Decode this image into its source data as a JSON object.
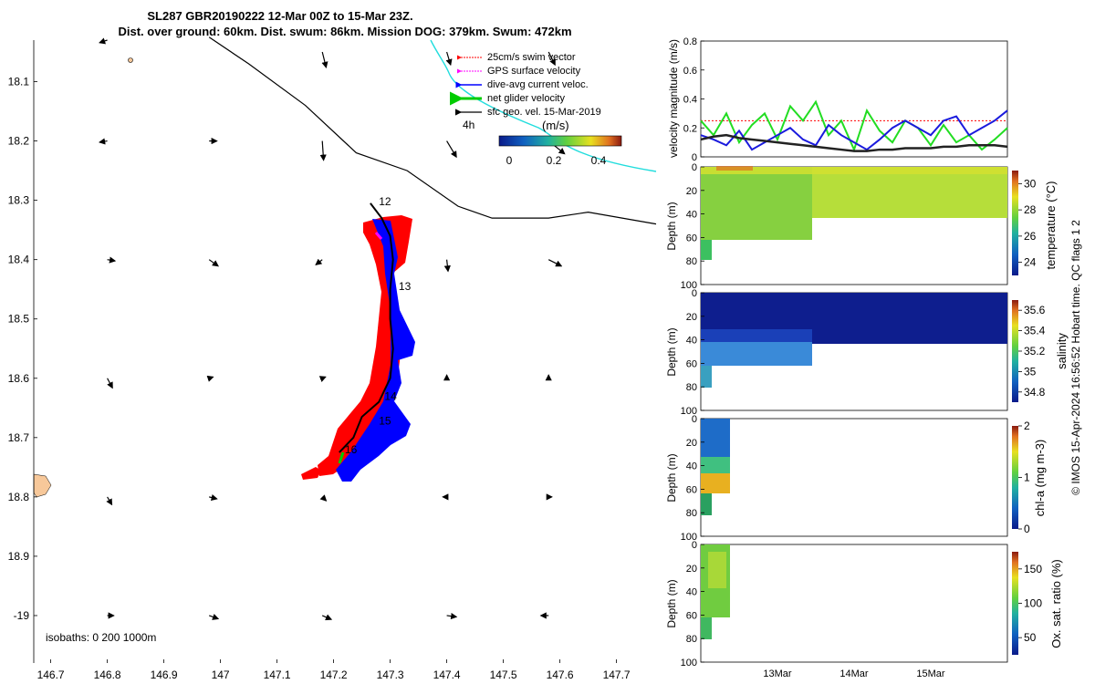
{
  "title": {
    "line1": "SL287 GBR20190222 12-Mar 00Z to 15-Mar 23Z.",
    "line2": "Dist. over ground: 60km. Dist. swum: 86km. Mission DOG: 379km. Swum: 472km"
  },
  "copyright": "© IMOS 15-Apr-2024 16:56:52 Hobart time. QC flags 1  2",
  "chart_data": [
    {
      "name": "track-map",
      "type": "scatter",
      "xlim": [
        146.67,
        147.77
      ],
      "ylim": [
        -18.03,
        -19.08
      ],
      "x_ticks": [
        "146.7",
        "146.8",
        "146.9",
        "147",
        "147.1",
        "147.2",
        "147.3",
        "147.4",
        "147.5",
        "147.6",
        "147.7"
      ],
      "x_tick_values": [
        146.7,
        146.8,
        146.9,
        147.0,
        147.1,
        147.2,
        147.3,
        147.4,
        147.5,
        147.6,
        147.7
      ],
      "y_ticks": [
        "18.1",
        "18.2",
        "18.3",
        "18.4",
        "18.5",
        "18.6",
        "18.7",
        "18.8",
        "18.9",
        "-19"
      ],
      "y_tick_values": [
        -18.1,
        -18.2,
        -18.3,
        -18.4,
        -18.5,
        -18.6,
        -18.7,
        -18.8,
        -18.9,
        -19.0
      ],
      "legend": [
        {
          "label": "25cm/s swim vector",
          "color": "#ff0000"
        },
        {
          "label": "GPS surface velocity",
          "color": "#ff00ff"
        },
        {
          "label": "dive-avg current veloc.",
          "color": "#0000ff"
        },
        {
          "label": "net glider velocity",
          "color": "#00cc00"
        },
        {
          "label": "sfc geo. vel. 15-Mar-2019",
          "color": "#000000"
        }
      ],
      "legend_note": "4h",
      "colorbar": {
        "title": "(m/s)",
        "ticks": [
          "0",
          "0.2",
          "0.4"
        ],
        "range": [
          0,
          0.5
        ]
      },
      "isobaths_label": "isobaths: 0  200  1000m",
      "track": [
        [
          147.265,
          -18.305
        ],
        [
          147.285,
          -18.33
        ],
        [
          147.3,
          -18.36
        ],
        [
          147.305,
          -18.4
        ],
        [
          147.3,
          -18.45
        ],
        [
          147.3,
          -18.5
        ],
        [
          147.305,
          -18.55
        ],
        [
          147.3,
          -18.6
        ],
        [
          147.28,
          -18.64
        ],
        [
          147.25,
          -18.665
        ],
        [
          147.235,
          -18.7
        ],
        [
          147.21,
          -18.725
        ]
      ],
      "day_labels": [
        {
          "text": "12",
          "lon": 147.28,
          "lat": -18.302
        },
        {
          "text": "13",
          "lon": 147.315,
          "lat": -18.445
        },
        {
          "text": "14",
          "lon": 147.29,
          "lat": -18.63
        },
        {
          "text": "15",
          "lon": 147.28,
          "lat": -18.672
        },
        {
          "text": "16",
          "lon": 147.22,
          "lat": -18.72
        }
      ],
      "coast": [
        [
          146.98,
          -18.025
        ],
        [
          147.05,
          -18.07
        ],
        [
          147.15,
          -18.14
        ],
        [
          147.24,
          -18.22
        ],
        [
          147.33,
          -18.25
        ],
        [
          147.42,
          -18.31
        ],
        [
          147.48,
          -18.33
        ],
        [
          147.58,
          -18.33
        ],
        [
          147.65,
          -18.32
        ],
        [
          147.77,
          -18.34
        ]
      ],
      "geo_vectors": [
        {
          "lon": 146.8,
          "lat": -18.2,
          "u": -0.12,
          "v": -0.02
        },
        {
          "lon": 146.98,
          "lat": -18.2,
          "u": 0.12,
          "v": 0.0
        },
        {
          "lon": 147.18,
          "lat": -18.2,
          "u": 0.02,
          "v": -0.3
        },
        {
          "lon": 147.4,
          "lat": -18.2,
          "u": 0.15,
          "v": -0.25
        },
        {
          "lon": 147.58,
          "lat": -18.2,
          "u": 0.25,
          "v": -0.2
        },
        {
          "lon": 146.8,
          "lat": -18.4,
          "u": 0.12,
          "v": -0.02
        },
        {
          "lon": 146.98,
          "lat": -18.4,
          "u": 0.14,
          "v": -0.1
        },
        {
          "lon": 147.18,
          "lat": -18.4,
          "u": -0.1,
          "v": -0.08
        },
        {
          "lon": 147.4,
          "lat": -18.4,
          "u": 0.02,
          "v": -0.18
        },
        {
          "lon": 147.58,
          "lat": -18.4,
          "u": 0.2,
          "v": -0.1
        },
        {
          "lon": 146.8,
          "lat": -18.6,
          "u": 0.08,
          "v": -0.15
        },
        {
          "lon": 146.98,
          "lat": -18.6,
          "u": 0.06,
          "v": 0.02
        },
        {
          "lon": 147.18,
          "lat": -18.6,
          "u": 0.05,
          "v": 0.02
        },
        {
          "lon": 147.4,
          "lat": -18.6,
          "u": 0.0,
          "v": 0.05
        },
        {
          "lon": 147.58,
          "lat": -18.6,
          "u": 0.0,
          "v": 0.05
        },
        {
          "lon": 146.8,
          "lat": -18.8,
          "u": 0.07,
          "v": -0.12
        },
        {
          "lon": 146.98,
          "lat": -18.8,
          "u": 0.12,
          "v": -0.03
        },
        {
          "lon": 147.18,
          "lat": -18.8,
          "u": 0.06,
          "v": -0.06
        },
        {
          "lon": 147.4,
          "lat": -18.8,
          "u": -0.06,
          "v": 0.0
        },
        {
          "lon": 147.58,
          "lat": -18.8,
          "u": 0.05,
          "v": 0.0
        },
        {
          "lon": 146.8,
          "lat": -19.0,
          "u": 0.1,
          "v": 0.0
        },
        {
          "lon": 146.98,
          "lat": -19.0,
          "u": 0.14,
          "v": -0.05
        },
        {
          "lon": 147.18,
          "lat": -19.0,
          "u": 0.14,
          "v": -0.06
        },
        {
          "lon": 147.4,
          "lat": -19.0,
          "u": 0.15,
          "v": -0.02
        },
        {
          "lon": 147.58,
          "lat": -19.0,
          "u": -0.12,
          "v": 0.0
        },
        {
          "lon": 146.8,
          "lat": -18.03,
          "u": -0.12,
          "v": -0.04
        },
        {
          "lon": 147.18,
          "lat": -18.05,
          "u": 0.06,
          "v": -0.24
        },
        {
          "lon": 147.4,
          "lat": -18.05,
          "u": 0.06,
          "v": -0.2
        },
        {
          "lon": 147.58,
          "lat": -18.05,
          "u": 0.1,
          "v": -0.2
        }
      ]
    },
    {
      "name": "velocity-timeseries",
      "type": "line",
      "ylabel": "velocity magnitude (m/s)",
      "ylim": [
        0,
        0.8
      ],
      "y_ticks": [
        "0",
        "0.2",
        "0.4",
        "0.6",
        "0.8"
      ],
      "x_start": "12-Mar 00Z",
      "x_end": "15-Mar 23Z",
      "series": [
        {
          "name": "swim (red dotted)",
          "color": "#ff0000",
          "values": [
            0.25,
            0.25,
            0.25,
            0.25,
            0.25,
            0.25,
            0.25,
            0.25,
            0.25,
            0.25,
            0.25,
            0.25,
            0.25,
            0.25,
            0.25,
            0.25,
            0.25,
            0.25,
            0.25,
            0.25,
            0.25,
            0.25,
            0.25,
            0.25,
            0.25
          ]
        },
        {
          "name": "net glider velocity",
          "color": "#22dd22",
          "values": [
            0.25,
            0.15,
            0.3,
            0.1,
            0.22,
            0.3,
            0.12,
            0.35,
            0.25,
            0.38,
            0.15,
            0.25,
            0.05,
            0.32,
            0.18,
            0.1,
            0.25,
            0.2,
            0.08,
            0.22,
            0.1,
            0.15,
            0.05,
            0.12,
            0.2
          ]
        },
        {
          "name": "dive-avg current",
          "color": "#1a1add",
          "values": [
            0.15,
            0.12,
            0.08,
            0.18,
            0.05,
            0.1,
            0.15,
            0.2,
            0.12,
            0.08,
            0.22,
            0.15,
            0.1,
            0.05,
            0.12,
            0.2,
            0.25,
            0.2,
            0.15,
            0.25,
            0.28,
            0.15,
            0.2,
            0.25,
            0.32
          ]
        },
        {
          "name": "sfc geo. vel.",
          "color": "#222222",
          "values": [
            0.12,
            0.14,
            0.15,
            0.13,
            0.12,
            0.11,
            0.1,
            0.09,
            0.08,
            0.07,
            0.06,
            0.05,
            0.04,
            0.04,
            0.05,
            0.05,
            0.06,
            0.06,
            0.06,
            0.07,
            0.07,
            0.08,
            0.08,
            0.08,
            0.07
          ]
        }
      ]
    },
    {
      "name": "temperature-section",
      "type": "heatmap",
      "ylabel": "Depth (m)",
      "clabel": "temperature (°C)",
      "y_ticks": [
        "0",
        "20",
        "40",
        "60",
        "80",
        "100"
      ],
      "c_ticks": [
        "24",
        "26",
        "28",
        "30"
      ],
      "crange": [
        23,
        31
      ]
    },
    {
      "name": "salinity-section",
      "type": "heatmap",
      "ylabel": "Depth (m)",
      "clabel": "salinity",
      "y_ticks": [
        "0",
        "20",
        "40",
        "60",
        "80",
        "100"
      ],
      "c_ticks": [
        "34.8",
        "35",
        "35.2",
        "35.4",
        "35.6"
      ],
      "crange": [
        34.7,
        35.7
      ]
    },
    {
      "name": "chla-section",
      "type": "heatmap",
      "ylabel": "Depth (m)",
      "clabel": "chl-a (mg m-3)",
      "y_ticks": [
        "0",
        "20",
        "40",
        "60",
        "80",
        "100"
      ],
      "c_ticks": [
        "0",
        "1",
        "2"
      ],
      "crange": [
        0,
        2
      ]
    },
    {
      "name": "oxygen-section",
      "type": "heatmap",
      "ylabel": "Depth (m)",
      "clabel": "Ox. sat. ratio (%)",
      "y_ticks": [
        "0",
        "20",
        "40",
        "60",
        "80",
        "100"
      ],
      "c_ticks": [
        "50",
        "100",
        "150"
      ],
      "crange": [
        25,
        175
      ],
      "x_ticks": [
        "13Mar",
        "14Mar",
        "15Mar"
      ]
    }
  ]
}
